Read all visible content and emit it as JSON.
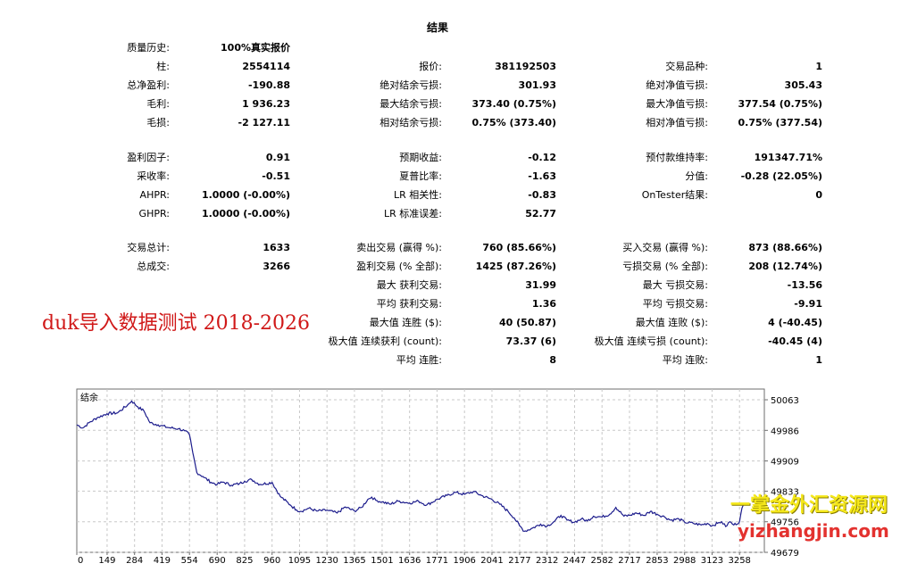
{
  "report": {
    "title": "结果",
    "rows": [
      [
        [
          "质量历史:",
          "100%真实报价"
        ],
        null,
        null
      ],
      [
        [
          "柱:",
          "2554114"
        ],
        [
          "报价:",
          "381192503"
        ],
        [
          "交易品种:",
          "1"
        ]
      ],
      [
        [
          "总净盈利:",
          "-190.88"
        ],
        [
          "绝对结余亏损:",
          "301.93"
        ],
        [
          "绝对净值亏损:",
          "305.43"
        ]
      ],
      [
        [
          "毛利:",
          "1 936.23"
        ],
        [
          "最大结余亏损:",
          "373.40 (0.75%)"
        ],
        [
          "最大净值亏损:",
          "377.54 (0.75%)"
        ]
      ],
      [
        [
          "毛损:",
          "-2 127.11"
        ],
        [
          "相对结余亏损:",
          "0.75% (373.40)"
        ],
        [
          "相对净值亏损:",
          "0.75% (377.54)"
        ]
      ],
      [
        [
          "盈利因子:",
          "0.91"
        ],
        [
          "预期收益:",
          "-0.12"
        ],
        [
          "预付款维持率:",
          "191347.71%"
        ]
      ],
      [
        [
          "采收率:",
          "-0.51"
        ],
        [
          "夏普比率:",
          "-1.63"
        ],
        [
          "分值:",
          "-0.28 (22.05%)"
        ]
      ],
      [
        [
          "AHPR:",
          "1.0000 (-0.00%)"
        ],
        [
          "LR 相关性:",
          "-0.83"
        ],
        [
          "OnTester结果:",
          "0"
        ]
      ],
      [
        [
          "GHPR:",
          "1.0000 (-0.00%)"
        ],
        [
          "LR 标准误差:",
          "52.77"
        ],
        null
      ],
      [
        [
          "交易总计:",
          "1633"
        ],
        [
          "卖出交易 (赢得 %):",
          "760 (85.66%)"
        ],
        [
          "买入交易 (赢得 %):",
          "873 (88.66%)"
        ]
      ],
      [
        [
          "总成交:",
          "3266"
        ],
        [
          "盈利交易 (% 全部):",
          "1425 (87.26%)"
        ],
        [
          "亏损交易 (% 全部):",
          "208 (12.74%)"
        ]
      ],
      [
        null,
        [
          "最大 获利交易:",
          "31.99"
        ],
        [
          "最大 亏损交易:",
          "-13.56"
        ]
      ],
      [
        null,
        [
          "平均 获利交易:",
          "1.36"
        ],
        [
          "平均 亏损交易:",
          "-9.91"
        ]
      ],
      [
        null,
        [
          "最大值 连胜 ($):",
          "40 (50.87)"
        ],
        [
          "最大值 连败 ($):",
          "4 (-40.45)"
        ]
      ],
      [
        null,
        [
          "极大值 连续获利 (count):",
          "73.37 (6)"
        ],
        [
          "极大值 连续亏损 (count):",
          "-40.45 (4)"
        ]
      ],
      [
        null,
        [
          "平均 连胜:",
          "8"
        ],
        [
          "平均 连败:",
          "1"
        ]
      ]
    ]
  },
  "overlay_text": "duk导入数据测试 2018-2026",
  "watermark": {
    "line1": "一掌金外汇资源网",
    "line2": "yizhangjin.com"
  },
  "chart_data": {
    "type": "line",
    "title": "结余",
    "xlabel": "",
    "ylabel": "",
    "x_ticks": [
      0,
      149,
      284,
      419,
      554,
      690,
      825,
      960,
      1095,
      1230,
      1365,
      1501,
      1636,
      1771,
      1906,
      2041,
      2177,
      2312,
      2447,
      2582,
      2717,
      2853,
      2988,
      3123,
      3258
    ],
    "y_ticks": [
      50063,
      49986,
      49909,
      49833,
      49756,
      49679
    ],
    "xlim": [
      0,
      3380
    ],
    "ylim": [
      49679,
      50090
    ],
    "grid": true,
    "line_color": "#1c1c8c",
    "series": [
      {
        "x": [
          0,
          30,
          60,
          100,
          149,
          200,
          250,
          270,
          300,
          330,
          360,
          400,
          450,
          500,
          530,
          554,
          570,
          590,
          620,
          660,
          690,
          720,
          760,
          800,
          825,
          860,
          900,
          960,
          1000,
          1050,
          1080,
          1100,
          1140,
          1180,
          1230,
          1280,
          1320,
          1365,
          1400,
          1430,
          1450,
          1470,
          1501,
          1540,
          1580,
          1636,
          1680,
          1720,
          1771,
          1820,
          1860,
          1906,
          1950,
          1990,
          2041,
          2080,
          2120,
          2150,
          2177,
          2200,
          2240,
          2280,
          2312,
          2350,
          2380,
          2410,
          2447,
          2480,
          2510,
          2540,
          2582,
          2620,
          2650,
          2690,
          2717,
          2750,
          2790,
          2820,
          2853,
          2890,
          2920,
          2960,
          2988,
          3030,
          3070,
          3100,
          3123,
          3150,
          3170,
          3190,
          3210,
          3230,
          3258,
          3270,
          3282
        ],
        "y": [
          50000,
          49992,
          50005,
          50018,
          50028,
          50030,
          50050,
          50060,
          50045,
          50035,
          50005,
          50000,
          49993,
          49990,
          49985,
          49975,
          49930,
          49880,
          49870,
          49855,
          49850,
          49856,
          49848,
          49852,
          49858,
          49862,
          49850,
          49855,
          49820,
          49798,
          49786,
          49782,
          49790,
          49783,
          49785,
          49778,
          49793,
          49783,
          49792,
          49812,
          49818,
          49810,
          49806,
          49800,
          49808,
          49803,
          49808,
          49798,
          49812,
          49822,
          49830,
          49825,
          49832,
          49822,
          49812,
          49800,
          49782,
          49766,
          49746,
          49732,
          49740,
          49750,
          49745,
          49758,
          49772,
          49760,
          49755,
          49763,
          49758,
          49770,
          49768,
          49775,
          49792,
          49770,
          49772,
          49778,
          49772,
          49782,
          49775,
          49768,
          49760,
          49763,
          49755,
          49752,
          49748,
          49752,
          49746,
          49752,
          49756,
          49744,
          49756,
          49748,
          49756,
          49790,
          49800
        ]
      }
    ]
  }
}
